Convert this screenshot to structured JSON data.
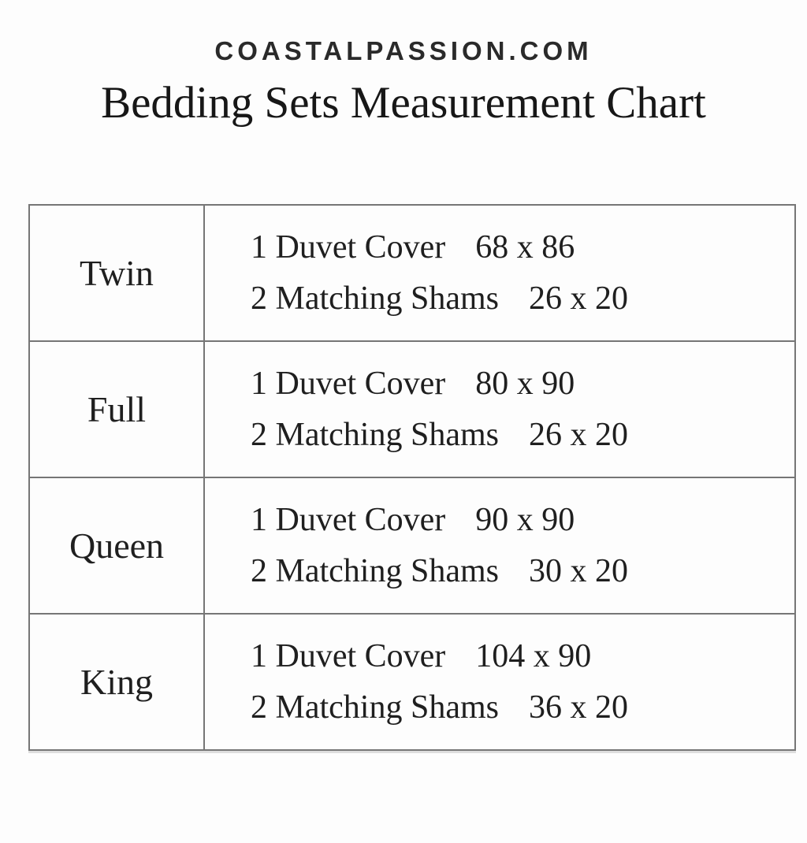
{
  "page": {
    "background_color": "#fdfdfd",
    "text_color": "#1f1f1f",
    "table_border_color": "#767676"
  },
  "header": {
    "site_name": "COASTALPASSION.COM",
    "title": "Bedding Sets Measurement Chart"
  },
  "chart_data": {
    "type": "table",
    "title": "Bedding Sets Measurement Chart",
    "rows": [
      {
        "size": "Twin",
        "items": [
          {
            "label": "1 Duvet Cover",
            "dimensions": "68 x 86"
          },
          {
            "label": "2 Matching Shams",
            "dimensions": "26 x 20"
          }
        ]
      },
      {
        "size": "Full",
        "items": [
          {
            "label": "1 Duvet Cover",
            "dimensions": "80 x 90"
          },
          {
            "label": "2 Matching Shams",
            "dimensions": "26 x 20"
          }
        ]
      },
      {
        "size": "Queen",
        "items": [
          {
            "label": "1 Duvet Cover",
            "dimensions": "90 x 90"
          },
          {
            "label": "2 Matching Shams",
            "dimensions": "30 x 20"
          }
        ]
      },
      {
        "size": "King",
        "items": [
          {
            "label": "1 Duvet Cover",
            "dimensions": "104 x 90"
          },
          {
            "label": "2 Matching Shams",
            "dimensions": "36 x 20"
          }
        ]
      }
    ]
  }
}
